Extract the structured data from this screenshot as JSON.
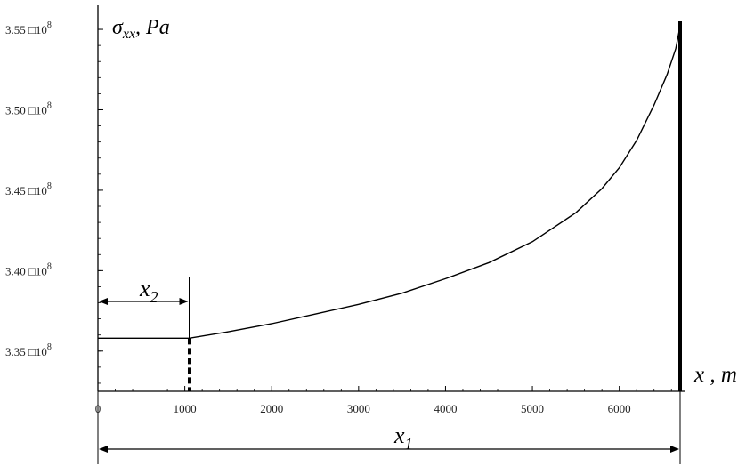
{
  "chart_data": {
    "type": "line",
    "ylabel_symbol": "σ",
    "ylabel_sub": "xx",
    "ylabel_unit": ", Pa",
    "xlabel": "x , m",
    "xlim": [
      0,
      6700
    ],
    "ylim": [
      332500000.0,
      355500000.0
    ],
    "x_ticks": [
      "0",
      "1000",
      "2000",
      "3000",
      "4000",
      "5000",
      "6000"
    ],
    "x_tick_values": [
      0,
      1000,
      2000,
      3000,
      4000,
      5000,
      6000
    ],
    "y_ticks": [
      {
        "value": 355000000.0,
        "mantissa": "3.55",
        "times": "□",
        "base": "10",
        "exp": "8"
      },
      {
        "value": 350000000.0,
        "mantissa": "3.50",
        "times": "□",
        "base": "10",
        "exp": "8"
      },
      {
        "value": 345000000.0,
        "mantissa": "3.45",
        "times": "□",
        "base": "10",
        "exp": "8"
      },
      {
        "value": 340000000.0,
        "mantissa": "3.40",
        "times": "□",
        "base": "10",
        "exp": "8"
      },
      {
        "value": 335000000.0,
        "mantissa": "3.35",
        "times": "□",
        "base": "10",
        "exp": "8"
      }
    ],
    "series": [
      {
        "x": [
          0,
          1050,
          1500,
          2000,
          2500,
          3000,
          3500,
          4000,
          4500,
          5000,
          5500,
          5800,
          6000,
          6200,
          6400,
          6550,
          6650,
          6700
        ],
        "y": [
          335800000.0,
          335800000.0,
          336200000.0,
          336700000.0,
          337300000.0,
          337900000.0,
          338600000.0,
          339500000.0,
          340500000.0,
          341800000.0,
          343600000.0,
          345100000.0,
          346400000.0,
          348100000.0,
          350300000.0,
          352200000.0,
          353800000.0,
          355200000.0
        ]
      }
    ],
    "x2_end": 1050,
    "x1_end": 6700,
    "annotations": {
      "x2_label": "x",
      "x2_sub": "2",
      "x1_label": "x",
      "x1_sub": "1"
    }
  }
}
